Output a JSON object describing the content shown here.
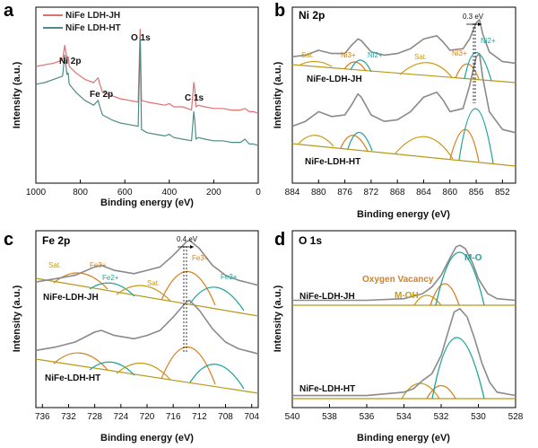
{
  "colors": {
    "red": "#e07070",
    "teal": "#4e8c86",
    "gray": "#8a8a8a",
    "light_gray": "#bdbdbd",
    "cyan": "#20a29c",
    "orange": "#d5801e",
    "gold": "#c99a10",
    "baseline": "#b89a1a"
  },
  "chart_data": [
    {
      "id": "a",
      "type": "line",
      "panel_label": "a",
      "xlabel": "Binding energy (eV)",
      "ylabel": "Intensity (a.u.)",
      "xlim": [
        1000,
        0
      ],
      "ylim": [
        0,
        10
      ],
      "x_ticks": [
        1000,
        800,
        600,
        400,
        200,
        0
      ],
      "legend": [
        "NiFe LDH-JH",
        "NiFe LDH-HT"
      ],
      "peak_labels": [
        {
          "text": "Ni 2p",
          "x": 855,
          "y": 8.3
        },
        {
          "text": "Fe 2p",
          "x": 710,
          "y": 6.6
        },
        {
          "text": "O 1s",
          "x": 531,
          "y": 9.5
        },
        {
          "text": "C 1s",
          "x": 285,
          "y": 6.3
        }
      ],
      "series": [
        {
          "name": "NiFe LDH-JH",
          "color": "red",
          "x": [
            1000,
            960,
            920,
            880,
            870,
            860,
            855,
            850,
            820,
            780,
            740,
            720,
            710,
            700,
            660,
            620,
            580,
            540,
            531,
            525,
            500,
            460,
            420,
            400,
            380,
            340,
            300,
            290,
            285,
            280,
            270,
            240,
            200,
            160,
            120,
            80,
            60,
            40,
            20,
            0
          ],
          "y": [
            7.0,
            7.1,
            7.2,
            7.4,
            8.3,
            7.5,
            7.6,
            7.0,
            6.6,
            6.2,
            6.0,
            6.3,
            5.8,
            5.4,
            5.2,
            5.0,
            4.9,
            4.8,
            9.3,
            4.9,
            4.8,
            4.7,
            4.6,
            4.7,
            4.5,
            4.5,
            4.3,
            6.0,
            5.6,
            4.5,
            4.6,
            4.5,
            4.4,
            4.4,
            4.3,
            4.3,
            4.4,
            4.2,
            4.2,
            4.1
          ]
        },
        {
          "name": "NiFe LDH-HT",
          "color": "teal",
          "x": [
            1000,
            960,
            920,
            880,
            870,
            860,
            855,
            850,
            820,
            780,
            740,
            720,
            710,
            700,
            660,
            620,
            580,
            540,
            531,
            525,
            500,
            460,
            420,
            400,
            380,
            340,
            300,
            290,
            285,
            280,
            270,
            240,
            200,
            160,
            120,
            80,
            60,
            40,
            20,
            0
          ],
          "y": [
            5.9,
            6.0,
            6.2,
            6.4,
            7.7,
            6.5,
            6.6,
            5.9,
            5.4,
            4.9,
            4.6,
            4.9,
            4.4,
            4.0,
            3.7,
            3.5,
            3.4,
            3.3,
            8.8,
            3.1,
            2.9,
            2.8,
            2.7,
            2.8,
            2.6,
            2.5,
            2.4,
            4.2,
            3.6,
            2.5,
            2.6,
            2.5,
            2.4,
            2.4,
            2.3,
            2.3,
            2.5,
            2.2,
            2.2,
            2.1
          ]
        }
      ]
    },
    {
      "id": "b",
      "type": "line",
      "panel_label": "b",
      "title": "Ni 2p",
      "xlabel": "Binding energy (eV)",
      "ylabel": "Intensity (a.u.)",
      "xlim": [
        884,
        850
      ],
      "ylim": [
        0,
        10
      ],
      "x_ticks": [
        884,
        880,
        876,
        872,
        868,
        864,
        860,
        856,
        852
      ],
      "sample_labels": [
        "NiFe-LDH-JH",
        "NiFe-LDH-HT"
      ],
      "shift_label": "0.3 eV",
      "annotations": [
        "Sat.",
        "Ni3+",
        "Ni2+",
        "Sat.",
        "Ni3+",
        "Ni2+"
      ],
      "annotation_colors": [
        "gold",
        "orange",
        "cyan",
        "gold",
        "orange",
        "cyan"
      ],
      "shift_lines_x": [
        856.2,
        855.9
      ],
      "series": [
        {
          "name": "JH data",
          "color": "gray",
          "x": [
            884,
            882,
            880,
            878,
            876,
            875,
            874,
            873.5,
            872,
            870,
            868,
            866,
            864,
            862,
            861,
            860,
            858,
            857,
            856,
            855.5,
            855,
            854,
            852,
            850
          ],
          "y": [
            7.6,
            7.7,
            8.0,
            7.8,
            7.8,
            8.3,
            8.7,
            8.6,
            7.9,
            7.7,
            7.8,
            8.1,
            8.7,
            8.9,
            8.5,
            8.0,
            8.1,
            8.7,
            9.7,
            9.9,
            9.0,
            7.9,
            7.3,
            7.2
          ]
        },
        {
          "name": "HT data",
          "color": "gray",
          "x": [
            884,
            882,
            880,
            878,
            876,
            875,
            874,
            873.5,
            872,
            870,
            868,
            866,
            864,
            862,
            861,
            860,
            858,
            857,
            856,
            855.5,
            855,
            854,
            852,
            850
          ],
          "y": [
            3.3,
            3.6,
            4.2,
            3.9,
            4.0,
            4.6,
            5.3,
            5.1,
            4.0,
            3.6,
            3.7,
            4.2,
            5.1,
            5.4,
            4.9,
            4.2,
            4.4,
            5.8,
            7.6,
            7.8,
            6.3,
            4.2,
            3.1,
            2.9
          ]
        }
      ]
    },
    {
      "id": "c",
      "type": "line",
      "panel_label": "c",
      "title": "Fe 2p",
      "xlabel": "Binding energy (eV)",
      "ylabel": "Intensity (a.u.)",
      "xlim": [
        737,
        703
      ],
      "ylim": [
        0,
        10
      ],
      "x_ticks": [
        736,
        732,
        728,
        724,
        720,
        716,
        712,
        708,
        704
      ],
      "sample_labels": [
        "NiFe-LDH-JH",
        "NiFe-LDH-HT"
      ],
      "shift_label": "0.4 eV",
      "annotations": [
        "Sat.",
        "Fe3+",
        "Fe2+",
        "Sat.",
        "Fe3+",
        "Fe2+"
      ],
      "annotation_colors": [
        "gold",
        "orange",
        "cyan",
        "gold",
        "orange",
        "cyan"
      ],
      "shift_lines_x": [
        713.6,
        713.2
      ],
      "series": [
        {
          "name": "JH data",
          "color": "gray",
          "x": [
            737,
            734,
            731,
            728,
            727,
            725,
            722,
            720,
            718,
            716,
            714,
            713.5,
            712,
            710,
            708,
            706,
            704,
            703
          ],
          "y": [
            7.2,
            7.4,
            7.6,
            8.1,
            8.2,
            7.9,
            7.7,
            7.9,
            8.1,
            8.8,
            9.6,
            9.7,
            9.2,
            8.2,
            7.6,
            7.3,
            7.1,
            7.0
          ]
        },
        {
          "name": "HT data",
          "color": "gray",
          "x": [
            737,
            734,
            731,
            728,
            727,
            725,
            722,
            720,
            718,
            716,
            714,
            713.5,
            712,
            710,
            708,
            706,
            704,
            703
          ],
          "y": [
            3.1,
            3.3,
            3.6,
            4.2,
            4.3,
            4.0,
            3.8,
            4.0,
            4.3,
            5.1,
            6.0,
            6.1,
            5.5,
            4.4,
            3.6,
            3.2,
            3.0,
            2.9
          ]
        }
      ]
    },
    {
      "id": "d",
      "type": "line",
      "panel_label": "d",
      "title": "O 1s",
      "xlabel": "Binding energy (eV)",
      "ylabel": "Intensity (a.u.)",
      "xlim": [
        540,
        528
      ],
      "ylim": [
        0,
        10
      ],
      "x_ticks": [
        540,
        538,
        536,
        534,
        532,
        530,
        528
      ],
      "sample_labels": [
        "NiFe-LDH-JH",
        "NiFe-LDH-HT"
      ],
      "annotations": [
        "M-O",
        "Oxygen Vacancy",
        "M-OH"
      ],
      "annotation_colors": [
        "cyan",
        "orange",
        "gold"
      ],
      "series": [
        {
          "name": "JH envelope",
          "color": "gray",
          "x": [
            540,
            536,
            534,
            533,
            532.5,
            532,
            531.5,
            531.2,
            531,
            530.7,
            530.3,
            530,
            529.5,
            529,
            528
          ],
          "y": [
            6.1,
            6.1,
            6.2,
            6.5,
            6.9,
            7.6,
            8.7,
            9.3,
            9.4,
            9.2,
            8.3,
            7.4,
            6.5,
            6.2,
            6.1
          ]
        },
        {
          "name": "HT envelope",
          "color": "gray",
          "x": [
            540,
            536,
            534,
            533.5,
            533,
            532.5,
            532,
            531.6,
            531.3,
            531,
            530.6,
            530.2,
            529.8,
            529.4,
            529,
            528
          ],
          "y": [
            0.4,
            0.4,
            0.6,
            0.8,
            1.3,
            1.7,
            2.8,
            4.3,
            5.4,
            5.6,
            5.1,
            3.8,
            2.3,
            1.2,
            0.6,
            0.4
          ]
        }
      ]
    }
  ]
}
